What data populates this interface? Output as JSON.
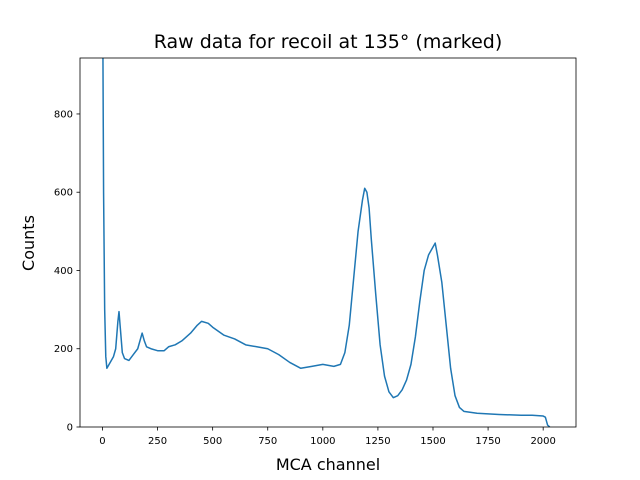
{
  "chart_data": {
    "type": "line",
    "title": "Raw data for recoil at 135° (marked)",
    "x_label": "MCA channel",
    "y_label": "Counts",
    "series": [
      {
        "name": "counts",
        "color": "#1f77b4",
        "x": [
          0,
          5,
          10,
          15,
          20,
          30,
          40,
          50,
          60,
          70,
          75,
          80,
          90,
          100,
          120,
          140,
          160,
          180,
          190,
          200,
          220,
          250,
          280,
          300,
          330,
          360,
          400,
          430,
          450,
          480,
          500,
          550,
          600,
          650,
          700,
          750,
          800,
          850,
          900,
          950,
          1000,
          1050,
          1080,
          1100,
          1120,
          1140,
          1160,
          1180,
          1190,
          1200,
          1210,
          1220,
          1240,
          1260,
          1280,
          1300,
          1320,
          1340,
          1360,
          1380,
          1400,
          1420,
          1440,
          1460,
          1480,
          1500,
          1510,
          1520,
          1540,
          1560,
          1580,
          1600,
          1620,
          1640,
          1700,
          1800,
          1900,
          1950,
          2000,
          2010,
          2020,
          2030
        ],
        "values": [
          1200,
          600,
          300,
          180,
          150,
          160,
          170,
          180,
          200,
          270,
          295,
          260,
          190,
          175,
          170,
          185,
          200,
          240,
          220,
          205,
          200,
          195,
          195,
          205,
          210,
          220,
          240,
          260,
          270,
          265,
          255,
          235,
          225,
          210,
          205,
          200,
          185,
          165,
          150,
          155,
          160,
          155,
          160,
          190,
          260,
          380,
          500,
          580,
          610,
          600,
          560,
          480,
          340,
          210,
          130,
          90,
          75,
          80,
          95,
          120,
          160,
          230,
          320,
          400,
          440,
          460,
          470,
          440,
          370,
          260,
          150,
          80,
          50,
          40,
          35,
          32,
          30,
          30,
          28,
          25,
          5,
          0
        ]
      }
    ],
    "xlim": [
      -102,
      2149
    ],
    "ylim": [
      0,
      943
    ],
    "xticks": [
      0,
      250,
      500,
      750,
      1000,
      1250,
      1500,
      1750,
      2000
    ],
    "yticks": [
      0,
      200,
      400,
      600,
      800
    ]
  }
}
